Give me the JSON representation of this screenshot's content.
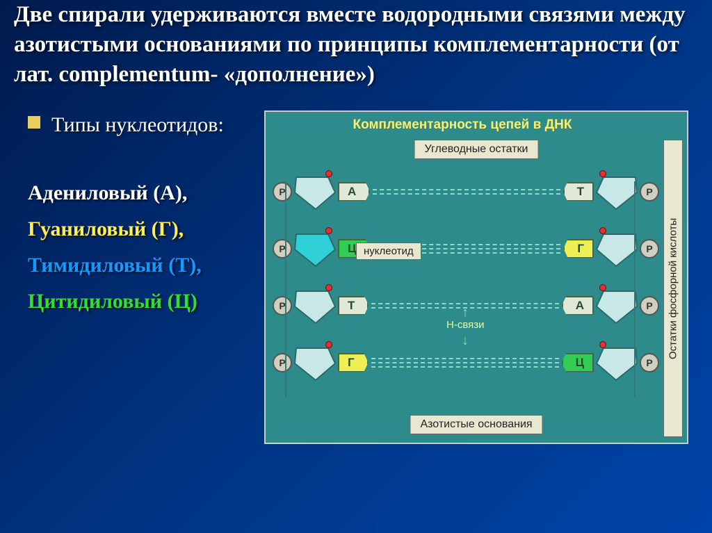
{
  "title": "Две спирали удерживаются вместе водородными связями между азотистыми основаниями по принципы комплементарности (от лат. complementum- «дополнение»)",
  "bullet": {
    "label": "Типы нуклеотидов:"
  },
  "nucleotides": [
    {
      "label": "Адениловый (А),",
      "color": "#ffffff"
    },
    {
      "label": "Гуаниловый (Г),",
      "color": "#ffee55"
    },
    {
      "label": "Тимидиловый (Т),",
      "color": "#1599ff"
    },
    {
      "label": "Цитидиловый (Ц)",
      "color": "#33dd33"
    }
  ],
  "diagram": {
    "title": "Комплементарность цепей в ДНК",
    "top_box": "Углеводные остатки",
    "bottom_box": "Азотистые основания",
    "right_vert": "Остатки фосфорной кислоты",
    "nucleotide_label": "нуклеотид",
    "h_bond_label": "Н-связи",
    "phosphate_letter": "Р",
    "colors": {
      "bg": "#2e8b8b",
      "box_bg": "#e8e8d0",
      "title_text": "#ffee66",
      "sugar_light": "#c8e8e8",
      "sugar_cyan": "#30d0d8",
      "base_white": "#e0e8d8",
      "base_yellow": "#eeee55",
      "base_green": "#33cc55",
      "bond": "#88ddcc",
      "red_dot": "#dd3333"
    },
    "pairs": [
      {
        "l": "А",
        "r": "Т",
        "lc": "#e0e8d8",
        "rc": "#e0e8d8",
        "bonds": 2,
        "ls": "#c8e8e8"
      },
      {
        "l": "Ц",
        "r": "Г",
        "lc": "#33cc55",
        "rc": "#eeee55",
        "bonds": 3,
        "ls": "#30d0d8"
      },
      {
        "l": "Т",
        "r": "А",
        "lc": "#e0e8d8",
        "rc": "#e0e8d8",
        "bonds": 2,
        "ls": "#c8e8e8"
      },
      {
        "l": "Г",
        "r": "Ц",
        "lc": "#eeee55",
        "rc": "#33cc55",
        "bonds": 3,
        "ls": "#c8e8e8"
      }
    ]
  }
}
